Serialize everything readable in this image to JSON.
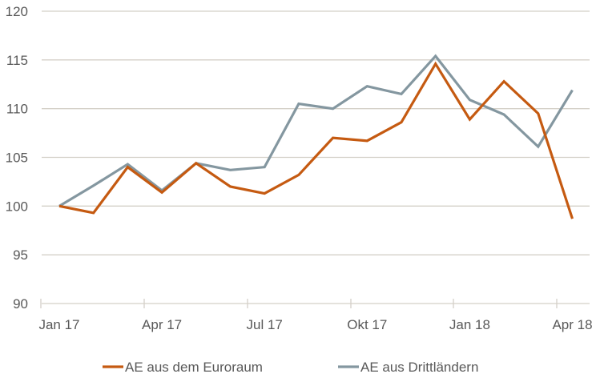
{
  "chart_data": {
    "type": "line",
    "title": "",
    "xlabel": "",
    "ylabel": "",
    "ylim": [
      90,
      120
    ],
    "yticks": [
      90,
      95,
      100,
      105,
      110,
      115,
      120
    ],
    "grid": true,
    "legend_position": "bottom",
    "x": [
      "Jan 17",
      "Feb 17",
      "Mar 17",
      "Apr 17",
      "May 17",
      "Jun 17",
      "Jul 17",
      "Aug 17",
      "Sep 17",
      "Okt 17",
      "Nov 17",
      "Dez 17",
      "Jan 18",
      "Feb 18",
      "Mar 18",
      "Apr 18"
    ],
    "xtick_labels": [
      "Jan 17",
      "Apr 17",
      "Jul 17",
      "Okt 17",
      "Jan 18",
      "Apr 18"
    ],
    "series": [
      {
        "name": "AE aus dem Euroraum",
        "color": "#c55a11",
        "values": [
          100,
          99.3,
          104.0,
          101.4,
          104.4,
          102.0,
          101.3,
          103.2,
          107.0,
          106.7,
          108.6,
          114.6,
          108.9,
          112.8,
          109.5,
          98.7
        ]
      },
      {
        "name": "AE aus Drittländern",
        "color": "#8497a0",
        "values": [
          100,
          102.1,
          104.3,
          101.6,
          104.4,
          103.7,
          104.0,
          110.5,
          110.0,
          112.3,
          111.5,
          115.4,
          110.9,
          109.4,
          106.1,
          111.9
        ]
      }
    ]
  }
}
